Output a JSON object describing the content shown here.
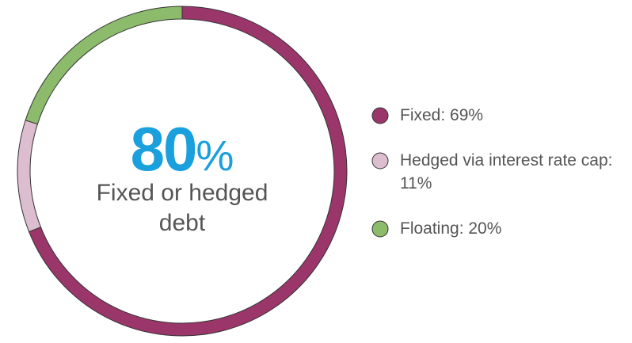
{
  "chart_data": {
    "type": "donut",
    "categories": [
      "Fixed: 69%",
      "Hedged via interest rate cap: 11%",
      "Floating: 20%"
    ],
    "values": [
      69,
      11,
      20
    ],
    "colors": [
      "#9b366b",
      "#ddbdd0",
      "#8cbb6c"
    ],
    "center_value": 80,
    "center_unit": "%",
    "center_caption": "Fixed or hedged debt",
    "legend": "right"
  }
}
